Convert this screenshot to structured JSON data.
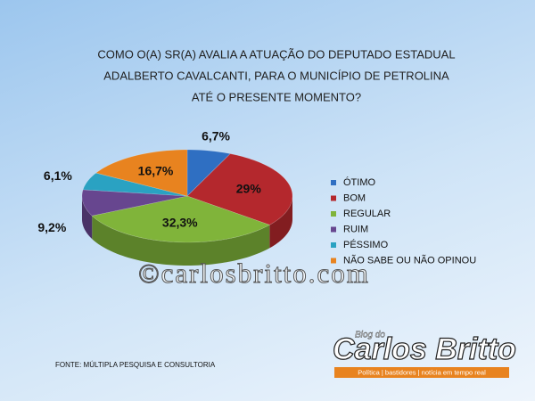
{
  "chart_data": {
    "type": "pie",
    "title": [
      "COMO O(A) SR(A) AVALIA A ATUAÇÃO DO DEPUTADO ESTADUAL",
      "ADALBERTO CAVALCANTI, PARA O MUNICÍPIO DE PETROLINA",
      "ATÉ O PRESENTE MOMENTO?"
    ],
    "categories": [
      "ÓTIMO",
      "BOM",
      "REGULAR",
      "RUIM",
      "PÉSSIMO",
      "NÃO SABE OU NÃO OPINOU"
    ],
    "values": [
      6.7,
      29,
      32.3,
      9.2,
      6.1,
      16.7
    ],
    "value_labels": [
      "6,7%",
      "29%",
      "32,3%",
      "9,2%",
      "6,1%",
      "16,7%"
    ],
    "colors": [
      "#2f6fc2",
      "#b4282d",
      "#80b43a",
      "#67468f",
      "#2aa2c2",
      "#e8831f"
    ],
    "legend": "right",
    "source": "FONTE: MÚLTIPLA PESQUISA E CONSULTORIA"
  },
  "watermark": "©carlosbritto.com",
  "logo": {
    "kicker": "Blog do",
    "name": "Carlos Britto",
    "tagline": "Política | bastidores | notícia em tempo real"
  }
}
